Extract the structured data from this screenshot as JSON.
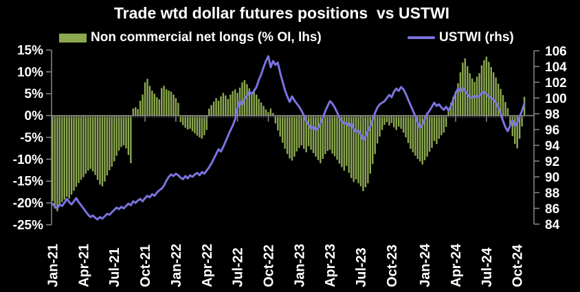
{
  "title": "Trade wtd dollar futures positions  vs USTWI",
  "legend": {
    "bars_label": "Non commercial net longs (% OI, lhs)",
    "line_label": "USTWI (rhs)"
  },
  "colors": {
    "background": "#000000",
    "bars": "#8ca950",
    "line": "#7a74e0",
    "axis": "#8a8a8a",
    "minor_tick": "#5f5f5f",
    "text": "#ffffff"
  },
  "chart_data": {
    "type": "bar",
    "title": "Trade wtd dollar futures positions  vs USTWI",
    "x_frequency": "weekly",
    "x_tick_labels": [
      {
        "index": 0,
        "label": "Jan-21"
      },
      {
        "index": 13,
        "label": "Apr-21"
      },
      {
        "index": 26,
        "label": "Jul-21"
      },
      {
        "index": 39,
        "label": "Oct-21"
      },
      {
        "index": 52,
        "label": "Jan-22"
      },
      {
        "index": 65,
        "label": "Apr-22"
      },
      {
        "index": 78,
        "label": "Jul-22"
      },
      {
        "index": 91,
        "label": "Oct-22"
      },
      {
        "index": 104,
        "label": "Jan-23"
      },
      {
        "index": 117,
        "label": "Apr-23"
      },
      {
        "index": 130,
        "label": "Jul-23"
      },
      {
        "index": 143,
        "label": "Oct-23"
      },
      {
        "index": 157,
        "label": "Jan-24"
      },
      {
        "index": 170,
        "label": "Apr-24"
      },
      {
        "index": 183,
        "label": "Jul-24"
      },
      {
        "index": 196,
        "label": "Oct-24"
      }
    ],
    "left_axis": {
      "side": "left",
      "min": -25,
      "max": 15,
      "ticks": [
        {
          "value": 15,
          "label": "15%"
        },
        {
          "value": 10,
          "label": "10%"
        },
        {
          "value": 5,
          "label": "5%"
        },
        {
          "value": 0,
          "label": "0%"
        },
        {
          "value": -5,
          "label": "-5%"
        },
        {
          "value": -10,
          "label": "-10%"
        },
        {
          "value": -15,
          "label": "-15%"
        },
        {
          "value": -20,
          "label": "-20%"
        },
        {
          "value": -25,
          "label": "-25%"
        }
      ]
    },
    "right_axis": {
      "side": "right",
      "min": 84,
      "max": 106,
      "ticks": [
        {
          "value": 106,
          "label": "106"
        },
        {
          "value": 104,
          "label": "104"
        },
        {
          "value": 102,
          "label": "102"
        },
        {
          "value": 100,
          "label": "100"
        },
        {
          "value": 98,
          "label": "98"
        },
        {
          "value": 96,
          "label": "96"
        },
        {
          "value": 94,
          "label": "94"
        },
        {
          "value": 92,
          "label": "92"
        },
        {
          "value": 90,
          "label": "90"
        },
        {
          "value": 88,
          "label": "88"
        },
        {
          "value": 86,
          "label": "86"
        },
        {
          "value": 84,
          "label": "84"
        }
      ]
    },
    "series": [
      {
        "name": "Non commercial net longs (% OI, lhs)",
        "type": "bar",
        "axis": "left",
        "values": [
          -19.6,
          -21.3,
          -21.9,
          -20.7,
          -19.8,
          -19.2,
          -18.6,
          -19.0,
          -18.1,
          -17.2,
          -16.3,
          -15.4,
          -14.7,
          -14.1,
          -13.3,
          -12.6,
          -12.2,
          -12.8,
          -13.6,
          -14.7,
          -15.8,
          -16.2,
          -15.1,
          -13.7,
          -12.5,
          -11.7,
          -10.5,
          -9.2,
          -8.0,
          -7.2,
          -6.8,
          -7.5,
          -9.0,
          -10.9,
          1.6,
          1.9,
          1.5,
          3.4,
          4.8,
          7.6,
          8.4,
          6.8,
          5.7,
          5.0,
          4.2,
          3.7,
          6.3,
          6.8,
          6.0,
          5.7,
          5.5,
          4.8,
          4.0,
          2.9,
          -1.5,
          -2.2,
          -2.8,
          -3.2,
          -3.0,
          -3.6,
          -4.1,
          -4.6,
          -5.0,
          -5.3,
          -4.5,
          -3.3,
          1.6,
          2.4,
          3.2,
          4.0,
          3.4,
          4.4,
          5.2,
          4.6,
          3.8,
          4.8,
          5.6,
          6.0,
          5.2,
          6.4,
          7.6,
          8.1,
          7.2,
          6.2,
          5.4,
          6.0,
          4.8,
          3.8,
          3.0,
          2.2,
          1.4,
          0.8,
          1.6,
          0.6,
          -1.8,
          -3.4,
          -4.8,
          -6.2,
          -7.6,
          -8.8,
          -9.8,
          -10.3,
          -9.4,
          -8.2,
          -7.4,
          -6.8,
          -7.6,
          -8.4,
          -7.0,
          -7.8,
          -8.6,
          -9.4,
          -10.2,
          -10.9,
          -9.9,
          -8.8,
          -8.1,
          -7.8,
          -8.7,
          -9.3,
          -10.1,
          -11.0,
          -11.8,
          -12.6,
          -11.5,
          -13.1,
          -14.3,
          -15.2,
          -14.6,
          -15.5,
          -16.2,
          -17.3,
          -16.4,
          -15.5,
          -13.3,
          -11.1,
          -8.8,
          -6.4,
          -4.8,
          -3.3,
          -2.1,
          -1.5,
          -2.3,
          -1.7,
          -2.7,
          -3.3,
          -2.5,
          -3.0,
          -3.9,
          -5.0,
          -6.3,
          -7.6,
          -8.4,
          -9.2,
          -9.9,
          -10.5,
          -11.2,
          -10.2,
          -9.4,
          -8.3,
          -7.4,
          -5.8,
          -6.5,
          -5.3,
          -4.5,
          -3.9,
          -2.6,
          1.7,
          2.9,
          4.3,
          5.5,
          7.4,
          9.9,
          12.1,
          13.1,
          11.3,
          9.7,
          8.5,
          7.7,
          8.9,
          9.7,
          11.5,
          12.7,
          13.5,
          12.3,
          11.1,
          9.9,
          8.7,
          7.3,
          6.1,
          4.7,
          3.1,
          1.7,
          -2.3,
          -4.7,
          -6.5,
          -7.5,
          -5.3,
          -2.5,
          4.3
        ]
      },
      {
        "name": "USTWI (rhs)",
        "type": "line",
        "axis": "right",
        "values": [
          86.6,
          86.2,
          86.0,
          86.5,
          86.3,
          86.7,
          87.2,
          86.8,
          86.5,
          86.9,
          87.3,
          86.8,
          86.4,
          86.0,
          85.6,
          85.2,
          84.9,
          85.1,
          84.8,
          84.6,
          84.9,
          84.7,
          85.0,
          85.3,
          85.2,
          85.5,
          85.8,
          86.1,
          85.9,
          86.2,
          86.0,
          86.3,
          86.6,
          86.4,
          86.9,
          86.7,
          87.0,
          87.2,
          86.9,
          87.3,
          87.6,
          87.4,
          87.8,
          87.6,
          88.0,
          88.3,
          88.5,
          88.9,
          89.5,
          90.0,
          90.3,
          90.1,
          90.4,
          90.2,
          89.9,
          89.7,
          90.1,
          89.8,
          90.2,
          90.0,
          90.3,
          90.5,
          90.2,
          90.6,
          90.4,
          90.8,
          91.2,
          91.7,
          92.3,
          92.9,
          93.5,
          93.2,
          93.8,
          94.5,
          95.2,
          95.9,
          96.5,
          97.3,
          98.8,
          99.6,
          99.1,
          99.9,
          100.3,
          100.8,
          100.5,
          100.9,
          101.4,
          102.3,
          103.0,
          103.9,
          104.7,
          105.3,
          103.9,
          104.7,
          104.2,
          104.5,
          103.2,
          102.1,
          101.0,
          100.2,
          99.5,
          100.2,
          99.7,
          99.3,
          98.9,
          98.4,
          97.8,
          97.1,
          96.6,
          96.1,
          96.4,
          95.9,
          96.2,
          96.8,
          97.5,
          98.3,
          99.0,
          99.6,
          99.3,
          98.8,
          98.2,
          97.5,
          97.1,
          96.7,
          96.9,
          96.4,
          96.8,
          96.1,
          95.7,
          95.9,
          95.4,
          94.7,
          95.1,
          95.8,
          96.4,
          97.2,
          98.1,
          98.8,
          99.2,
          99.4,
          99.6,
          100.0,
          100.4,
          100.1,
          100.8,
          101.2,
          100.9,
          101.4,
          101.1,
          100.5,
          99.8,
          99.1,
          98.4,
          97.7,
          96.9,
          96.2,
          96.6,
          97.3,
          98.0,
          98.4,
          98.9,
          99.4,
          99.0,
          99.2,
          98.8,
          98.5,
          98.9,
          98.4,
          99.0,
          99.8,
          100.6,
          101.2,
          100.8,
          101.3,
          100.9,
          100.5,
          100.1,
          100.0,
          100.3,
          100.1,
          100.3,
          100.6,
          100.8,
          100.5,
          100.2,
          100.0,
          99.8,
          99.4,
          98.8,
          98.0,
          97.1,
          96.3,
          95.8,
          96.5,
          97.2,
          96.4,
          96.9,
          97.6,
          98.4,
          99.3
        ]
      }
    ],
    "legend_position": "top",
    "grid": false
  }
}
